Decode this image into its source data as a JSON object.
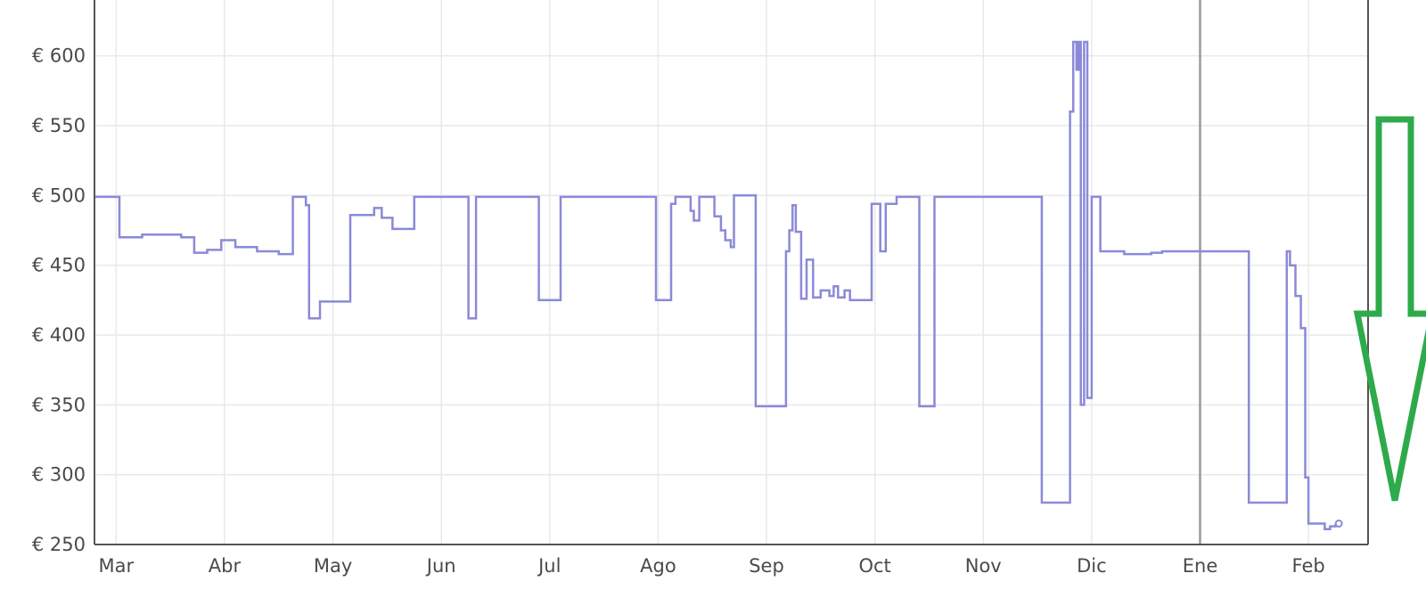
{
  "chart_data": {
    "type": "line",
    "title": "",
    "xlabel": "",
    "ylabel": "",
    "step": true,
    "grid": true,
    "legend": "none",
    "colors": {
      "series": "#8a8ad8",
      "arrow": "#2eaa4b",
      "grid": "#e9e9e9",
      "axis": "#555555",
      "year_line": "#9a9a9a"
    },
    "xlim": [
      -0.2,
      11.55
    ],
    "ylim": [
      250,
      640
    ],
    "y_ticks": [
      250,
      300,
      350,
      400,
      450,
      500,
      550,
      600
    ],
    "y_tick_labels": [
      "€ 250",
      "€ 300",
      "€ 350",
      "€ 400",
      "€ 450",
      "€ 500",
      "€ 550",
      "€ 600"
    ],
    "x_ticks": [
      0,
      1,
      2,
      3,
      4,
      5,
      6,
      7,
      8,
      9,
      10,
      11
    ],
    "x_tick_labels": [
      "Mar",
      "Abr",
      "May",
      "Jun",
      "Jul",
      "Ago",
      "Sep",
      "Oct",
      "Nov",
      "Dic",
      "Ene",
      "Feb"
    ],
    "year_divider_at": 10,
    "annotation": {
      "type": "arrow-down",
      "color": "#2eaa4b",
      "points_to": [
        11.5,
        265
      ]
    },
    "series": [
      {
        "values": [
          [
            -0.45,
            470
          ],
          [
            -0.4,
            499
          ],
          [
            0.03,
            470
          ],
          [
            0.24,
            472
          ],
          [
            0.6,
            470
          ],
          [
            0.72,
            459
          ],
          [
            0.84,
            461
          ],
          [
            0.97,
            468
          ],
          [
            1.1,
            463
          ],
          [
            1.3,
            460
          ],
          [
            1.5,
            458
          ],
          [
            1.63,
            499
          ],
          [
            1.75,
            493
          ],
          [
            1.78,
            412
          ],
          [
            1.88,
            424
          ],
          [
            2.16,
            486
          ],
          [
            2.38,
            491
          ],
          [
            2.45,
            484
          ],
          [
            2.55,
            476
          ],
          [
            2.75,
            499
          ],
          [
            3.25,
            412
          ],
          [
            3.32,
            499
          ],
          [
            3.9,
            425
          ],
          [
            4.1,
            499
          ],
          [
            4.98,
            425
          ],
          [
            5.12,
            494
          ],
          [
            5.16,
            499
          ],
          [
            5.3,
            489
          ],
          [
            5.33,
            482
          ],
          [
            5.38,
            499
          ],
          [
            5.52,
            485
          ],
          [
            5.58,
            475
          ],
          [
            5.62,
            468
          ],
          [
            5.67,
            463
          ],
          [
            5.7,
            500
          ],
          [
            5.9,
            349
          ],
          [
            6.18,
            460
          ],
          [
            6.21,
            475
          ],
          [
            6.24,
            493
          ],
          [
            6.27,
            474
          ],
          [
            6.32,
            426
          ],
          [
            6.37,
            454
          ],
          [
            6.43,
            427
          ],
          [
            6.5,
            432
          ],
          [
            6.58,
            428
          ],
          [
            6.62,
            435
          ],
          [
            6.66,
            427
          ],
          [
            6.72,
            432
          ],
          [
            6.77,
            425
          ],
          [
            6.97,
            494
          ],
          [
            7.05,
            460
          ],
          [
            7.1,
            494
          ],
          [
            7.2,
            499
          ],
          [
            7.41,
            349
          ],
          [
            7.55,
            499
          ],
          [
            8.54,
            280
          ],
          [
            8.8,
            560
          ],
          [
            8.83,
            610
          ],
          [
            8.86,
            590
          ],
          [
            8.88,
            610
          ],
          [
            8.9,
            350
          ],
          [
            8.93,
            610
          ],
          [
            8.96,
            355
          ],
          [
            9.0,
            499
          ],
          [
            9.08,
            460
          ],
          [
            9.3,
            458
          ],
          [
            9.55,
            459
          ],
          [
            9.65,
            460
          ],
          [
            10.45,
            280
          ],
          [
            10.8,
            460
          ],
          [
            10.83,
            450
          ],
          [
            10.88,
            428
          ],
          [
            10.93,
            405
          ],
          [
            10.97,
            298
          ],
          [
            11.0,
            265
          ],
          [
            11.15,
            261
          ],
          [
            11.2,
            263
          ],
          [
            11.25,
            264
          ],
          [
            11.28,
            265
          ]
        ]
      }
    ]
  }
}
